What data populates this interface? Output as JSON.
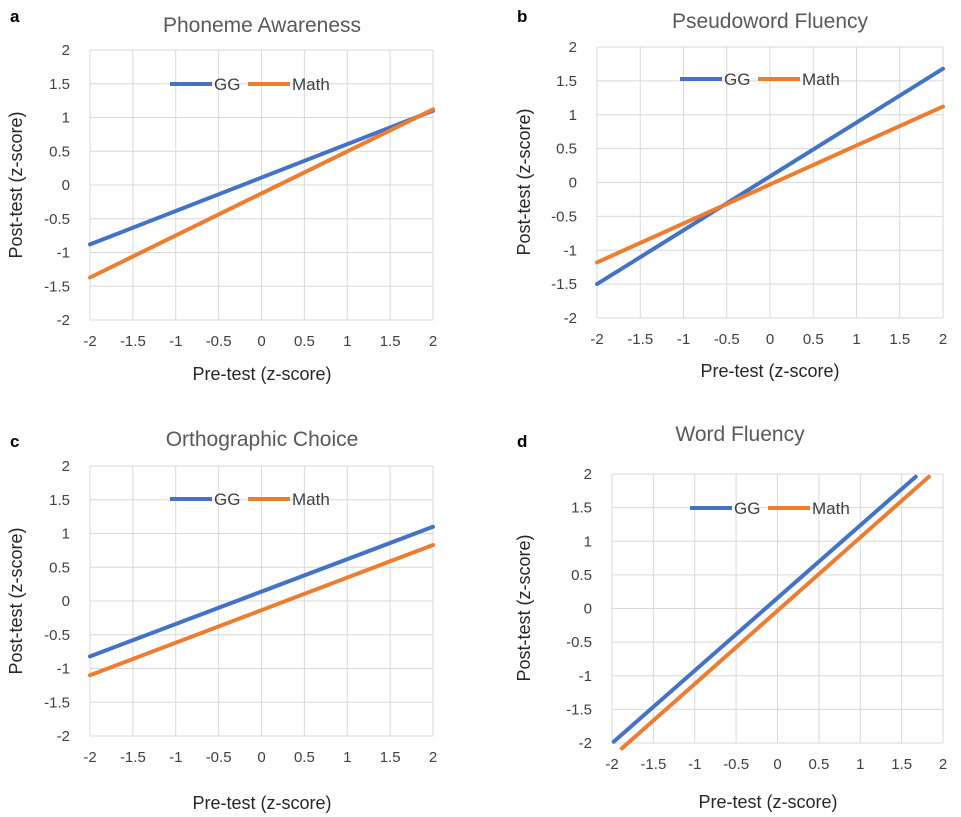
{
  "colors": {
    "GG": "#4472C4",
    "Math": "#ED7D31",
    "grid": "#D9D9D9"
  },
  "chart_data": [
    {
      "panel": "a",
      "type": "line",
      "title": "Phoneme Awareness",
      "xlabel": "Pre-test (z-score)",
      "ylabel": "Post-test (z-score)",
      "xlim": [
        -2,
        2
      ],
      "ylim": [
        -2,
        2
      ],
      "xticks": [
        "-2",
        "-1.5",
        "-1",
        "-0.5",
        "0",
        "0.5",
        "1",
        "1.5",
        "2"
      ],
      "yticks": [
        "2",
        "1.5",
        "1",
        "0.5",
        "0",
        "-0.5",
        "-1",
        "-1.5",
        "-2"
      ],
      "grid": true,
      "legend": "top-center",
      "series": [
        {
          "name": "GG",
          "x": [
            -2,
            2
          ],
          "y": [
            -0.88,
            1.1
          ]
        },
        {
          "name": "Math",
          "x": [
            -2,
            2
          ],
          "y": [
            -1.37,
            1.12
          ]
        }
      ]
    },
    {
      "panel": "b",
      "type": "line",
      "title": "Pseudoword Fluency",
      "xlabel": "Pre-test (z-score)",
      "ylabel": "Post-test (z-score)",
      "xlim": [
        -2,
        2
      ],
      "ylim": [
        -2,
        2
      ],
      "xticks": [
        "-2",
        "-1.5",
        "-1",
        "-0.5",
        "0",
        "0.5",
        "1",
        "1.5",
        "2"
      ],
      "yticks": [
        "2",
        "1.5",
        "1",
        "0.5",
        "0",
        "-0.5",
        "-1",
        "-1.5",
        "-2"
      ],
      "grid": true,
      "legend": "top-center",
      "series": [
        {
          "name": "GG",
          "x": [
            -2,
            2
          ],
          "y": [
            -1.5,
            1.68
          ]
        },
        {
          "name": "Math",
          "x": [
            -2,
            2
          ],
          "y": [
            -1.18,
            1.12
          ]
        }
      ]
    },
    {
      "panel": "c",
      "type": "line",
      "title": "Orthographic Choice",
      "xlabel": "Pre-test (z-score)",
      "ylabel": "Post-test (z-score)",
      "xlim": [
        -2,
        2
      ],
      "ylim": [
        -2,
        2
      ],
      "xticks": [
        "-2",
        "-1.5",
        "-1",
        "-0.5",
        "0",
        "0.5",
        "1",
        "1.5",
        "2"
      ],
      "yticks": [
        "2",
        "1.5",
        "1",
        "0.5",
        "0",
        "-0.5",
        "-1",
        "-1.5",
        "-2"
      ],
      "grid": true,
      "legend": "top-center",
      "series": [
        {
          "name": "GG",
          "x": [
            -2,
            2
          ],
          "y": [
            -0.82,
            1.1
          ]
        },
        {
          "name": "Math",
          "x": [
            -2,
            2
          ],
          "y": [
            -1.1,
            0.83
          ]
        }
      ]
    },
    {
      "panel": "d",
      "type": "line",
      "title": "Word Fluency",
      "xlabel": "Pre-test (z-score)",
      "ylabel": "Post-test (z-score)",
      "xlim": [
        -2,
        2
      ],
      "ylim": [
        -2,
        2
      ],
      "xticks": [
        "-2",
        "-1.5",
        "-1",
        "-0.5",
        "0",
        "0.5",
        "1",
        "1.5",
        "2"
      ],
      "yticks": [
        "2",
        "1.5",
        "1",
        "0.5",
        "0",
        "-0.5",
        "-1",
        "-1.5",
        "-2"
      ],
      "grid": true,
      "legend": "top-center",
      "series": [
        {
          "name": "GG",
          "x": [
            -1.98,
            1.67
          ],
          "y": [
            -1.98,
            1.96
          ]
        },
        {
          "name": "Math",
          "x": [
            -1.88,
            1.83
          ],
          "y": [
            -2.08,
            1.96
          ]
        }
      ]
    }
  ]
}
